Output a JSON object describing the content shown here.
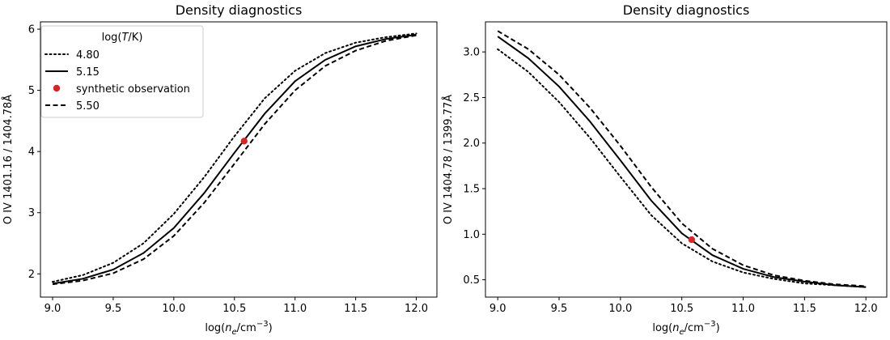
{
  "chart_data": [
    {
      "type": "line",
      "title": "Density diagnostics",
      "xlabel": "log(n_e/cm^-3)",
      "ylabel": "O IV 1401.16 / 1404.78Å",
      "xlim": [
        8.9,
        12.17
      ],
      "ylim": [
        1.62,
        6.12
      ],
      "xticks": [
        9.0,
        9.5,
        10.0,
        10.5,
        11.0,
        11.5,
        12.0
      ],
      "yticks": [
        2,
        3,
        4,
        5,
        6
      ],
      "grid": false,
      "legend": {
        "title": "log(T/K)",
        "placement": "upper-left"
      },
      "x": [
        9.0,
        9.25,
        9.5,
        9.75,
        10.0,
        10.25,
        10.5,
        10.75,
        11.0,
        11.25,
        11.5,
        11.75,
        12.0
      ],
      "series": [
        {
          "name": "4.80",
          "style": "dotted",
          "color": "#000000",
          "values": [
            1.87,
            1.98,
            2.18,
            2.5,
            2.98,
            3.58,
            4.25,
            4.87,
            5.32,
            5.61,
            5.78,
            5.87,
            5.93
          ]
        },
        {
          "name": "5.15",
          "style": "solid",
          "color": "#000000",
          "values": [
            1.84,
            1.92,
            2.07,
            2.34,
            2.75,
            3.32,
            3.98,
            4.62,
            5.15,
            5.5,
            5.72,
            5.84,
            5.91
          ]
        },
        {
          "name": "5.50",
          "style": "dashed",
          "color": "#000000",
          "values": [
            1.83,
            1.89,
            2.01,
            2.24,
            2.62,
            3.16,
            3.8,
            4.45,
            5.0,
            5.4,
            5.65,
            5.81,
            5.9
          ]
        }
      ],
      "points": [
        {
          "name": "synthetic observation",
          "x": 10.58,
          "y": 4.17,
          "color": "#d62728"
        }
      ],
      "legend_entries": [
        {
          "label": "4.80",
          "style": "dotted"
        },
        {
          "label": "5.15",
          "style": "solid"
        },
        {
          "label": "synthetic observation",
          "style": "marker"
        },
        {
          "label": "5.50",
          "style": "dashed"
        }
      ]
    },
    {
      "type": "line",
      "title": "Density diagnostics",
      "xlabel": "log(n_e/cm^-3)",
      "ylabel": "O IV 1404.78 / 1399.77Å",
      "xlim": [
        8.9,
        12.17
      ],
      "ylim": [
        0.31,
        3.33
      ],
      "xticks": [
        9.0,
        9.5,
        10.0,
        10.5,
        11.0,
        11.5,
        12.0
      ],
      "yticks": [
        0.5,
        1.0,
        1.5,
        2.0,
        2.5,
        3.0
      ],
      "grid": false,
      "x": [
        9.0,
        9.25,
        9.5,
        9.75,
        10.0,
        10.25,
        10.5,
        10.75,
        11.0,
        11.25,
        11.5,
        11.75,
        12.0
      ],
      "series": [
        {
          "name": "4.80",
          "style": "dotted",
          "color": "#000000",
          "values": [
            3.03,
            2.78,
            2.45,
            2.06,
            1.63,
            1.21,
            0.9,
            0.7,
            0.58,
            0.51,
            0.46,
            0.44,
            0.42
          ]
        },
        {
          "name": "5.15",
          "style": "solid",
          "color": "#000000",
          "values": [
            3.17,
            2.93,
            2.62,
            2.24,
            1.81,
            1.37,
            1.01,
            0.77,
            0.62,
            0.53,
            0.48,
            0.44,
            0.42
          ]
        },
        {
          "name": "5.50",
          "style": "dashed",
          "color": "#000000",
          "values": [
            3.23,
            3.03,
            2.75,
            2.39,
            1.97,
            1.52,
            1.12,
            0.84,
            0.66,
            0.55,
            0.49,
            0.45,
            0.43
          ]
        }
      ],
      "points": [
        {
          "name": "synthetic observation",
          "x": 10.58,
          "y": 0.94,
          "color": "#d62728"
        }
      ]
    }
  ]
}
